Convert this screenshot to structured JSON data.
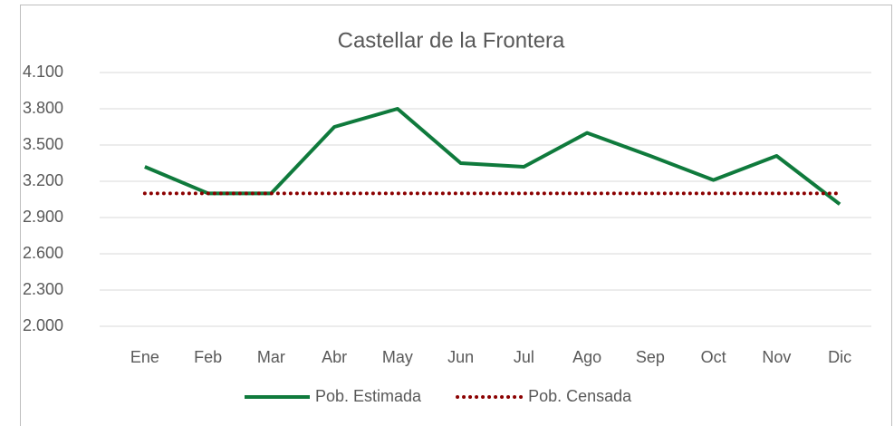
{
  "chart_data": {
    "type": "line",
    "title": "Castellar de la Frontera",
    "categories": [
      "Ene",
      "Feb",
      "Mar",
      "Abr",
      "May",
      "Jun",
      "Jul",
      "Ago",
      "Sep",
      "Oct",
      "Nov",
      "Dic"
    ],
    "series": [
      {
        "name": "Pob. Estimada",
        "color": "#0f7a3c",
        "style": "solid",
        "values": [
          3320,
          3100,
          3100,
          3650,
          3800,
          3350,
          3320,
          3600,
          3410,
          3210,
          3410,
          3010
        ]
      },
      {
        "name": "Pob. Censada",
        "color": "#8b0000",
        "style": "dotted",
        "values": [
          3100,
          3100,
          3100,
          3100,
          3100,
          3100,
          3100,
          3100,
          3100,
          3100,
          3100,
          3100
        ]
      }
    ],
    "ylim": [
      2000,
      4100
    ],
    "yticks": [
      {
        "value": 2000,
        "label": "2.000"
      },
      {
        "value": 2300,
        "label": "2.300"
      },
      {
        "value": 2600,
        "label": "2.600"
      },
      {
        "value": 2900,
        "label": "2.900"
      },
      {
        "value": 3200,
        "label": "3.200"
      },
      {
        "value": 3500,
        "label": "3.500"
      },
      {
        "value": 3800,
        "label": "3.800"
      },
      {
        "value": 4100,
        "label": "4.100"
      }
    ],
    "grid": true,
    "legend": "bottom"
  }
}
